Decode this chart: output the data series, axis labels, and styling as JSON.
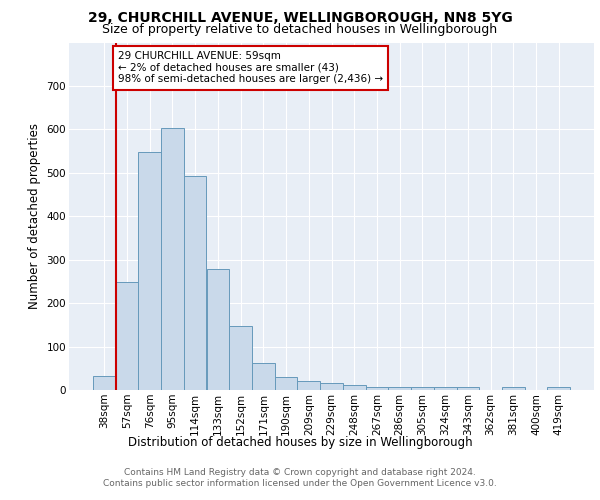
{
  "title1": "29, CHURCHILL AVENUE, WELLINGBOROUGH, NN8 5YG",
  "title2": "Size of property relative to detached houses in Wellingborough",
  "xlabel": "Distribution of detached houses by size in Wellingborough",
  "ylabel": "Number of detached properties",
  "categories": [
    "38sqm",
    "57sqm",
    "76sqm",
    "95sqm",
    "114sqm",
    "133sqm",
    "152sqm",
    "171sqm",
    "190sqm",
    "209sqm",
    "229sqm",
    "248sqm",
    "267sqm",
    "286sqm",
    "305sqm",
    "324sqm",
    "343sqm",
    "362sqm",
    "381sqm",
    "400sqm",
    "419sqm"
  ],
  "values": [
    33,
    248,
    548,
    603,
    493,
    278,
    147,
    62,
    31,
    21,
    16,
    12,
    6,
    8,
    8,
    7,
    6,
    0,
    6,
    0,
    6
  ],
  "bar_color": "#c9d9ea",
  "bar_edge_color": "#6699bb",
  "vline_x": 0.5,
  "vline_color": "#cc0000",
  "annotation_text": "29 CHURCHILL AVENUE: 59sqm\n← 2% of detached houses are smaller (43)\n98% of semi-detached houses are larger (2,436) →",
  "annotation_box_color": "#ffffff",
  "annotation_box_edge": "#cc0000",
  "ylim": [
    0,
    800
  ],
  "yticks": [
    0,
    100,
    200,
    300,
    400,
    500,
    600,
    700,
    800
  ],
  "footer1": "Contains HM Land Registry data © Crown copyright and database right 2024.",
  "footer2": "Contains public sector information licensed under the Open Government Licence v3.0.",
  "plot_bg_color": "#e8eef6",
  "title1_fontsize": 10,
  "title2_fontsize": 9,
  "xlabel_fontsize": 8.5,
  "ylabel_fontsize": 8.5,
  "tick_fontsize": 7.5,
  "annotation_fontsize": 7.5,
  "footer_fontsize": 6.5
}
